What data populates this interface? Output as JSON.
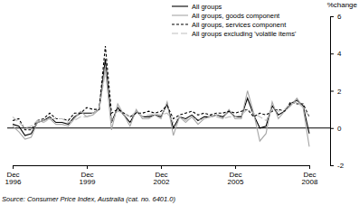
{
  "chart_data": {
    "type": "line",
    "y_label": "%change",
    "source": "Source: Consumer Price Index, Australia (cat. no. 6401.0)",
    "categories": [
      "Dec 1996",
      null,
      null,
      null,
      null,
      null,
      null,
      null,
      null,
      null,
      null,
      null,
      "Dec 1999",
      null,
      null,
      null,
      null,
      null,
      null,
      null,
      null,
      null,
      null,
      null,
      "Dec 2002",
      null,
      null,
      null,
      null,
      null,
      null,
      null,
      null,
      null,
      null,
      null,
      "Dec 2005",
      null,
      null,
      null,
      null,
      null,
      null,
      null,
      null,
      null,
      null,
      null,
      "Dec 2008"
    ],
    "series": [
      {
        "name": "All groups",
        "color": "#000000",
        "line_style": "solid",
        "values": [
          0.2,
          0.1,
          -0.4,
          -0.3,
          0.3,
          0.4,
          0.6,
          0.3,
          0.3,
          0.2,
          0.6,
          0.8,
          0.8,
          0.8,
          1.0,
          3.7,
          0.3,
          1.1,
          0.7,
          0.3,
          0.9,
          0.6,
          0.6,
          0.7,
          0.6,
          1.3,
          0.0,
          0.6,
          0.5,
          0.7,
          0.4,
          0.6,
          0.6,
          0.7,
          0.6,
          0.9,
          0.6,
          0.6,
          1.6,
          0.7,
          0.0,
          0.1,
          1.2,
          0.7,
          0.9,
          1.3,
          1.5,
          1.2,
          -0.3
        ]
      },
      {
        "name": "All groups, goods component",
        "color": "#a6a6a6",
        "line_style": "solid",
        "values": [
          0.1,
          -0.2,
          -0.6,
          -0.5,
          0.3,
          0.4,
          0.5,
          0.2,
          0.2,
          0.1,
          0.5,
          0.9,
          0.6,
          0.7,
          1.0,
          3.3,
          -0.1,
          1.3,
          0.7,
          0.1,
          1.0,
          0.5,
          0.5,
          0.7,
          0.5,
          1.4,
          -0.4,
          0.6,
          0.3,
          0.6,
          0.2,
          0.5,
          0.6,
          0.7,
          0.5,
          1.0,
          0.5,
          0.5,
          2.0,
          0.8,
          -0.7,
          -0.3,
          1.4,
          0.5,
          0.9,
          1.2,
          1.6,
          1.1,
          -1.0
        ]
      },
      {
        "name": "All groups, services component",
        "color": "#000000",
        "line_style": "dashed",
        "values": [
          0.4,
          0.5,
          -0.1,
          -0.1,
          0.4,
          0.5,
          0.8,
          0.5,
          0.5,
          0.4,
          0.8,
          0.8,
          1.1,
          1.0,
          1.0,
          4.4,
          0.8,
          1.0,
          0.8,
          0.6,
          0.8,
          0.8,
          0.9,
          0.8,
          0.9,
          1.2,
          0.5,
          0.7,
          0.8,
          0.9,
          0.7,
          0.8,
          0.7,
          0.8,
          0.8,
          0.9,
          0.8,
          0.9,
          1.0,
          0.6,
          0.8,
          0.7,
          0.9,
          1.0,
          0.9,
          1.4,
          1.3,
          1.3,
          0.6
        ]
      },
      {
        "name": "All groups excluding 'volatile items'",
        "color": "#bdbdbd",
        "line_style": "long_dashed",
        "values": [
          0.6,
          0.3,
          0.0,
          0.1,
          0.4,
          0.3,
          0.5,
          0.5,
          0.5,
          0.3,
          0.4,
          0.6,
          0.6,
          0.8,
          1.0,
          3.0,
          0.3,
          0.9,
          0.8,
          0.6,
          0.9,
          0.6,
          0.7,
          0.8,
          0.7,
          0.8,
          0.3,
          0.6,
          0.4,
          0.6,
          0.4,
          0.5,
          0.6,
          0.6,
          0.5,
          0.6,
          0.6,
          0.7,
          1.0,
          0.8,
          0.6,
          0.4,
          1.0,
          0.9,
          1.0,
          1.3,
          1.4,
          1.1,
          0.6
        ]
      }
    ],
    "ylim": [
      -2,
      6
    ],
    "yticks": [
      -2,
      0,
      2,
      4,
      6
    ],
    "grid": false,
    "legend": "top-right"
  }
}
